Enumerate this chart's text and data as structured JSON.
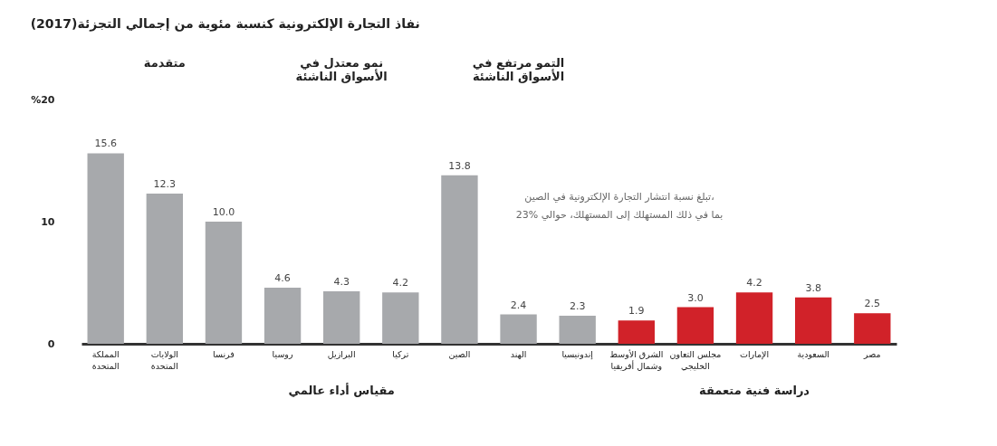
{
  "chart_data": {
    "type": "bar",
    "title": "نفاذ التجارة الإلكترونية كنسبة مئوية من إجمالي التجزئة(2017)",
    "categories": [
      "المملكة\nالمتحدة",
      "الولايات\nالمتحدة",
      "فرنسا",
      "روسيا",
      "البرازيل",
      "تركيا",
      "الصين",
      "الهند",
      "إندونيسيا",
      "الشرق الأوسط\nوشمال أفريقيا",
      "مجلس التعاون\nالخليجي",
      "الإمارات",
      "السعودية",
      "مصر"
    ],
    "values": [
      15.6,
      12.3,
      10.0,
      4.6,
      4.3,
      4.2,
      13.8,
      2.4,
      2.3,
      1.9,
      3.0,
      4.2,
      3.8,
      2.5
    ],
    "value_labels": [
      "15.6",
      "12.3",
      "10.0",
      "4.6",
      "4.3",
      "4.2",
      "13.8",
      "2.4",
      "2.3",
      "1.9",
      "3.0",
      "4.2",
      "3.8",
      "2.5"
    ],
    "colors": [
      "#a7a9ac",
      "#a7a9ac",
      "#a7a9ac",
      "#a7a9ac",
      "#a7a9ac",
      "#a7a9ac",
      "#a7a9ac",
      "#a7a9ac",
      "#a7a9ac",
      "#d12229",
      "#d12229",
      "#d12229",
      "#d12229",
      "#d12229"
    ],
    "ylim": [
      0,
      20
    ],
    "yticks": [
      0,
      10,
      {
        "value": 20,
        "label": "%20"
      }
    ],
    "grid": false,
    "annotations": [
      "متقدمة",
      "نمو معتدل في\nالأسواق الناشئة",
      "التمو مرتفع في\nالأسواق الناشئة",
      "مقياس أداء عالمي",
      "دراسة فنية متعمقة",
      "تبلغ نسبة انتشار التجارة الإلكترونية في الصين،\nبما في ذلك المستهلك إلى المستهلك، حوالي %23"
    ]
  }
}
